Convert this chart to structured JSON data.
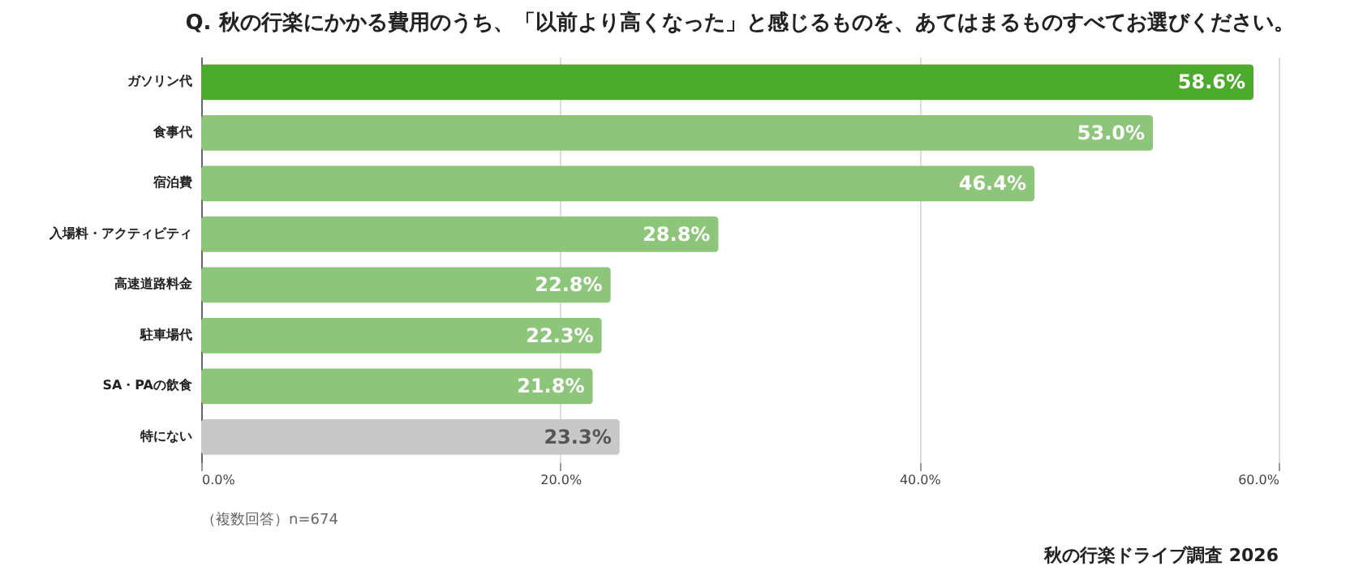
{
  "chart_data": {
    "type": "bar",
    "orientation": "horizontal",
    "title": "Q. 秋の行楽にかかる費用のうち、「以前より高くなった」と感じるものを、あてはまるものすべてお選びください。",
    "categories": [
      "ガソリン代",
      "食事代",
      "宿泊費",
      "入場料・アクティビティ",
      "高速道路料金",
      "駐車場代",
      "SA・PAの飲食",
      "特にない"
    ],
    "values": [
      58.6,
      53.0,
      46.4,
      28.8,
      22.8,
      22.3,
      21.8,
      23.3
    ],
    "value_labels": [
      "58.6%",
      "53.0%",
      "46.4%",
      "28.8%",
      "22.8%",
      "22.3%",
      "21.8%",
      "23.3%"
    ],
    "colors": [
      "#4caa2c",
      "#8dc57a",
      "#8dc57a",
      "#8dc57a",
      "#8dc57a",
      "#8dc57a",
      "#8dc57a",
      "#c8c8c8"
    ],
    "xlim": [
      0,
      60
    ],
    "xticks": [
      {
        "value": 0,
        "label": "0.0%"
      },
      {
        "value": 20,
        "label": "20.0%"
      },
      {
        "value": 40,
        "label": "40.0%"
      },
      {
        "value": 60,
        "label": "60.0%"
      }
    ],
    "grid": "x",
    "annotations": [
      "（複数回答）n=674",
      "秋の行楽ドライブ調査 2026"
    ]
  }
}
